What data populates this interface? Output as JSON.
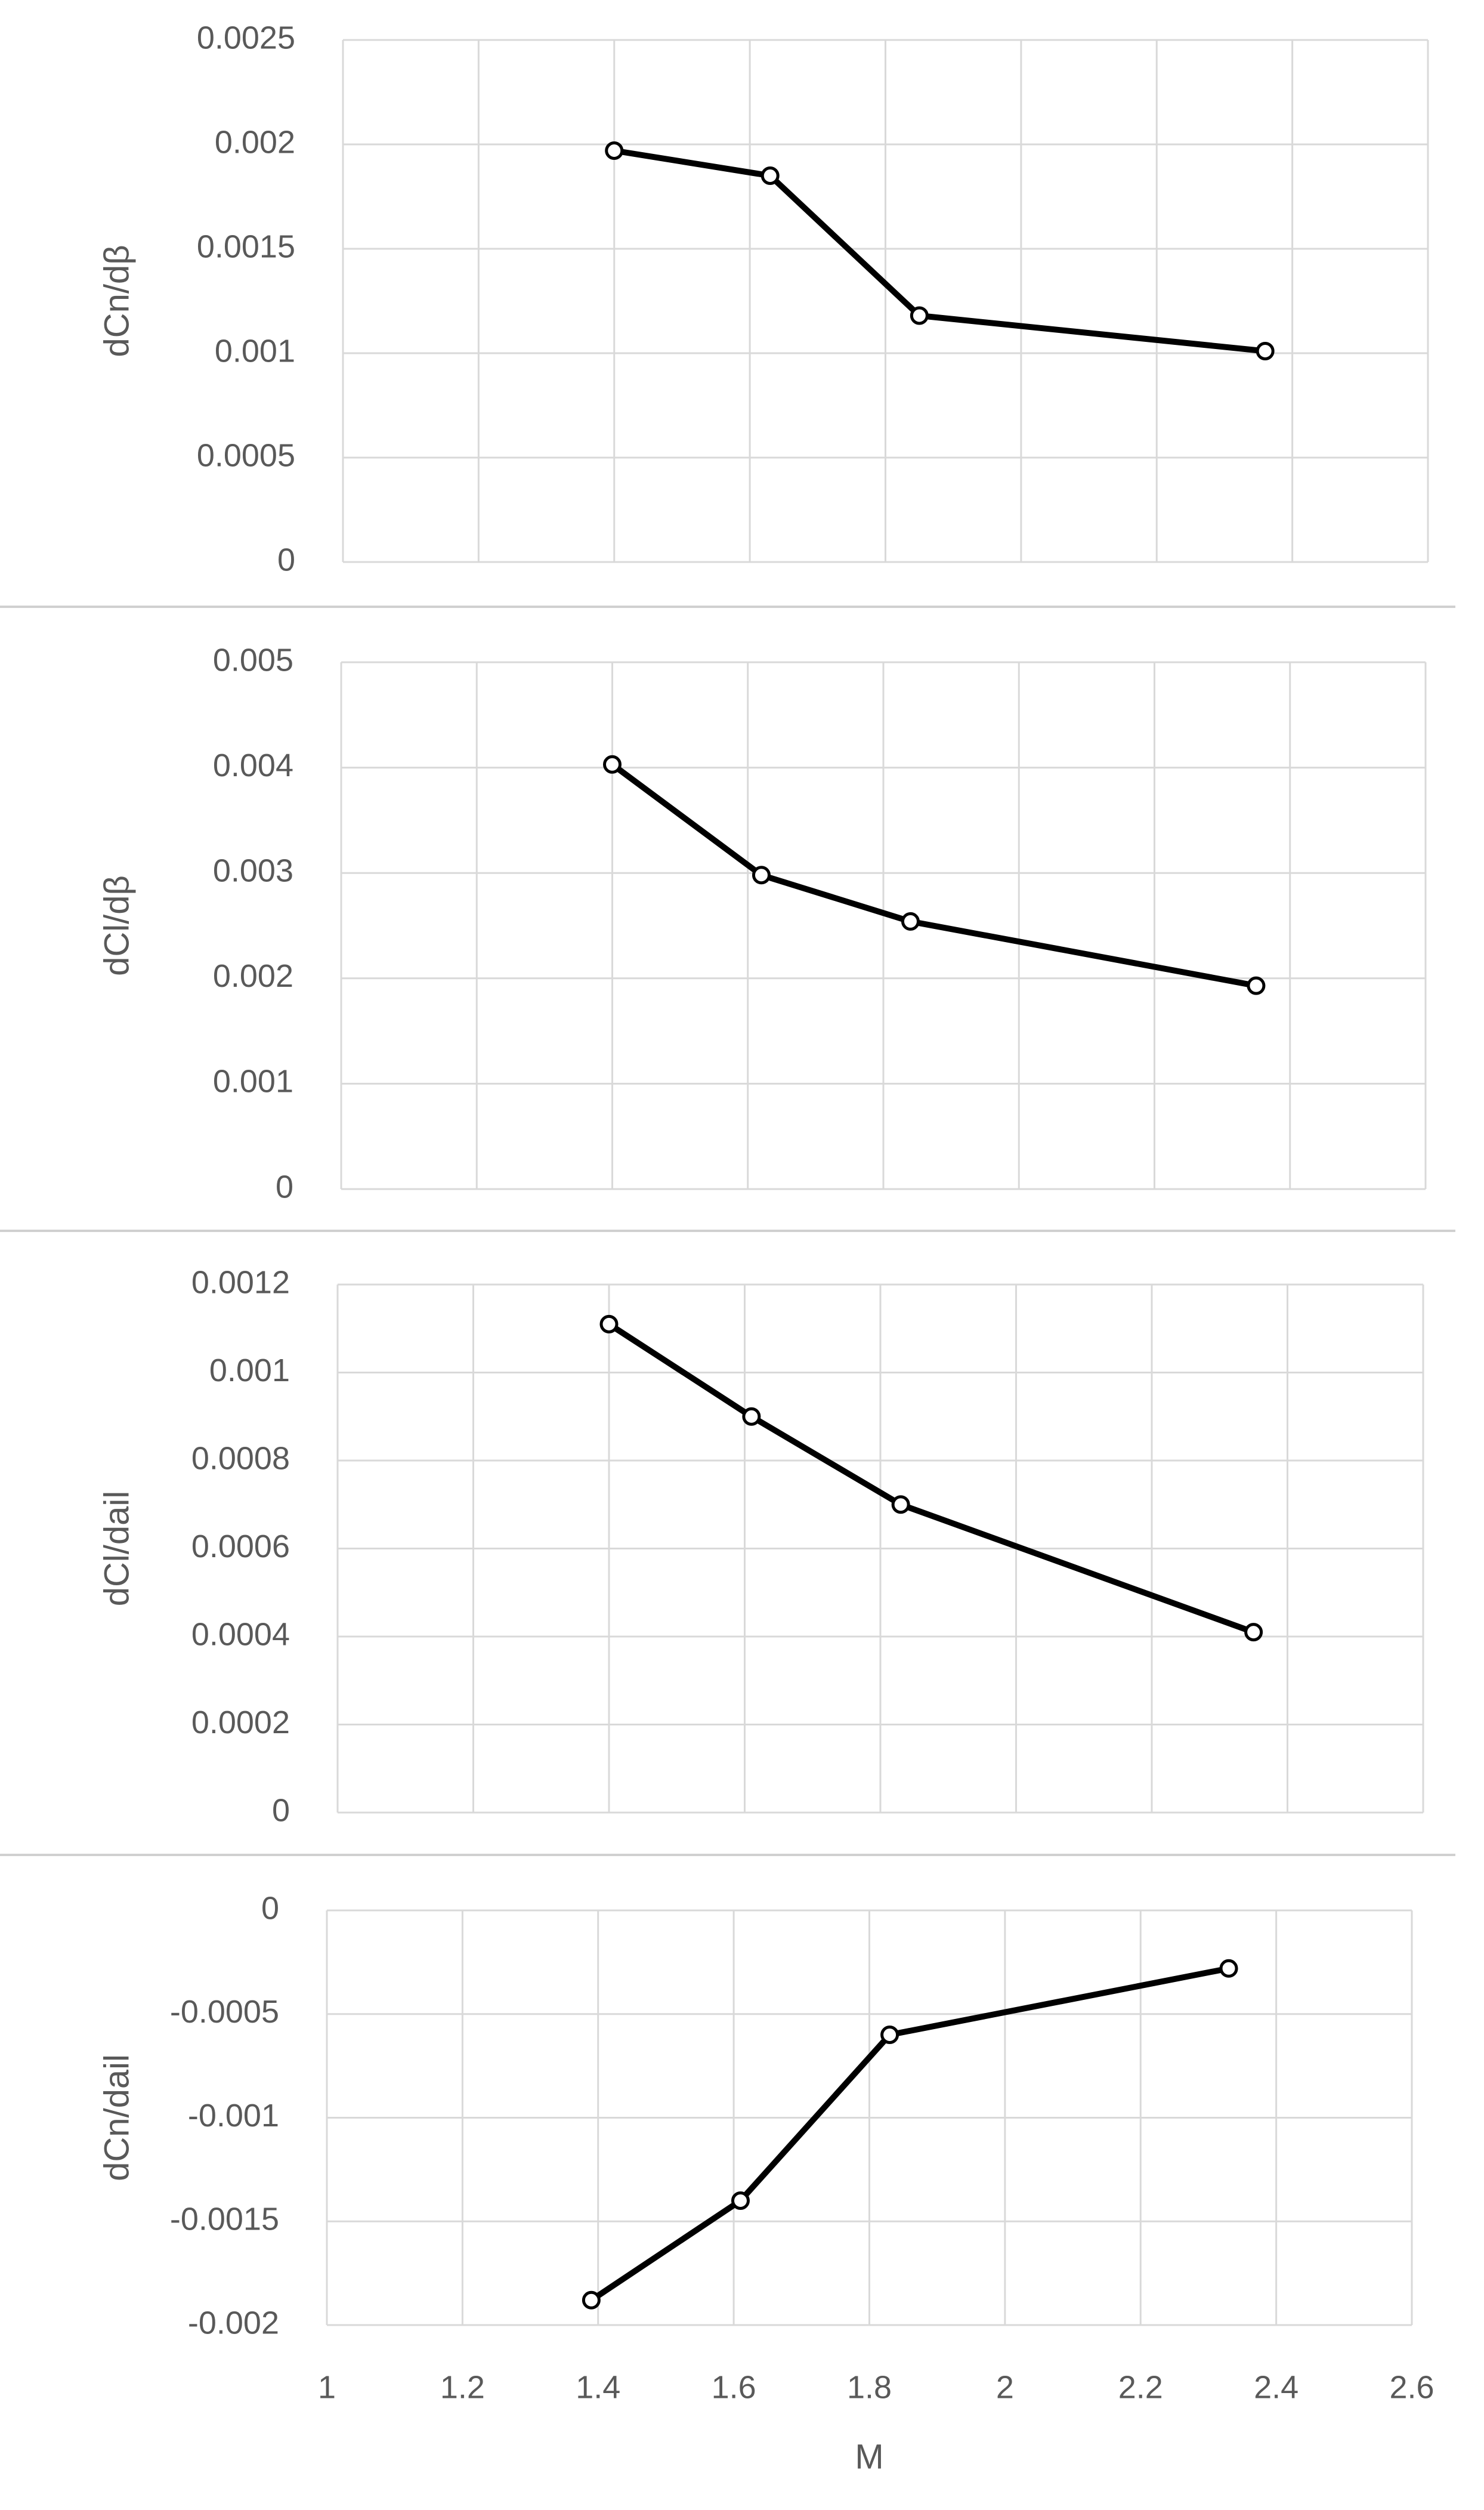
{
  "chart_data": [
    {
      "type": "line",
      "ylabel": "dCn/dβ",
      "color": "#000000",
      "x": [
        1.4,
        1.63,
        1.85,
        2.36
      ],
      "values": [
        0.00197,
        0.00185,
        0.00118,
        0.00101
      ],
      "xlim": [
        1,
        2.6
      ],
      "xticks": [
        1,
        1.2,
        1.4,
        1.6,
        1.8,
        2,
        2.2,
        2.4,
        2.6
      ],
      "ylim": [
        0,
        0.0025
      ],
      "yticks": [
        0,
        0.0005,
        0.001,
        0.0015,
        0.002,
        0.0025
      ],
      "grid": true
    },
    {
      "type": "line",
      "ylabel": "dCl/dβ",
      "color": "#000000",
      "x": [
        1.4,
        1.62,
        1.84,
        2.35
      ],
      "values": [
        0.00403,
        0.00298,
        0.00254,
        0.00193
      ],
      "xlim": [
        1,
        2.6
      ],
      "xticks": [
        1,
        1.2,
        1.4,
        1.6,
        1.8,
        2,
        2.2,
        2.4,
        2.6
      ],
      "ylim": [
        0,
        0.005
      ],
      "yticks": [
        0,
        0.001,
        0.002,
        0.003,
        0.004,
        0.005
      ],
      "grid": true
    },
    {
      "type": "line",
      "ylabel": "dCl/dail",
      "color": "#000000",
      "x": [
        1.4,
        1.61,
        1.83,
        2.35
      ],
      "values": [
        0.00111,
        0.0009,
        0.0007,
        0.00041
      ],
      "xlim": [
        1,
        2.6
      ],
      "xticks": [
        1,
        1.2,
        1.4,
        1.6,
        1.8,
        2,
        2.2,
        2.4,
        2.6
      ],
      "ylim": [
        0,
        0.0012
      ],
      "yticks": [
        0,
        0.0002,
        0.0004,
        0.0006,
        0.0008,
        0.001,
        0.0012
      ],
      "grid": true
    },
    {
      "type": "line",
      "ylabel": "dCn/dail",
      "xlabel": "M",
      "color": "#000000",
      "x": [
        1.39,
        1.61,
        1.83,
        2.33
      ],
      "values": [
        -0.00188,
        -0.0014,
        -0.0006,
        -0.00028
      ],
      "xlim": [
        1,
        2.6
      ],
      "xticks": [
        1,
        1.2,
        1.4,
        1.6,
        1.8,
        2,
        2.2,
        2.4,
        2.6
      ],
      "ylim": [
        -0.002,
        0
      ],
      "yticks": [
        -0.002,
        -0.0015,
        -0.001,
        -0.0005,
        0
      ],
      "grid": true
    }
  ]
}
